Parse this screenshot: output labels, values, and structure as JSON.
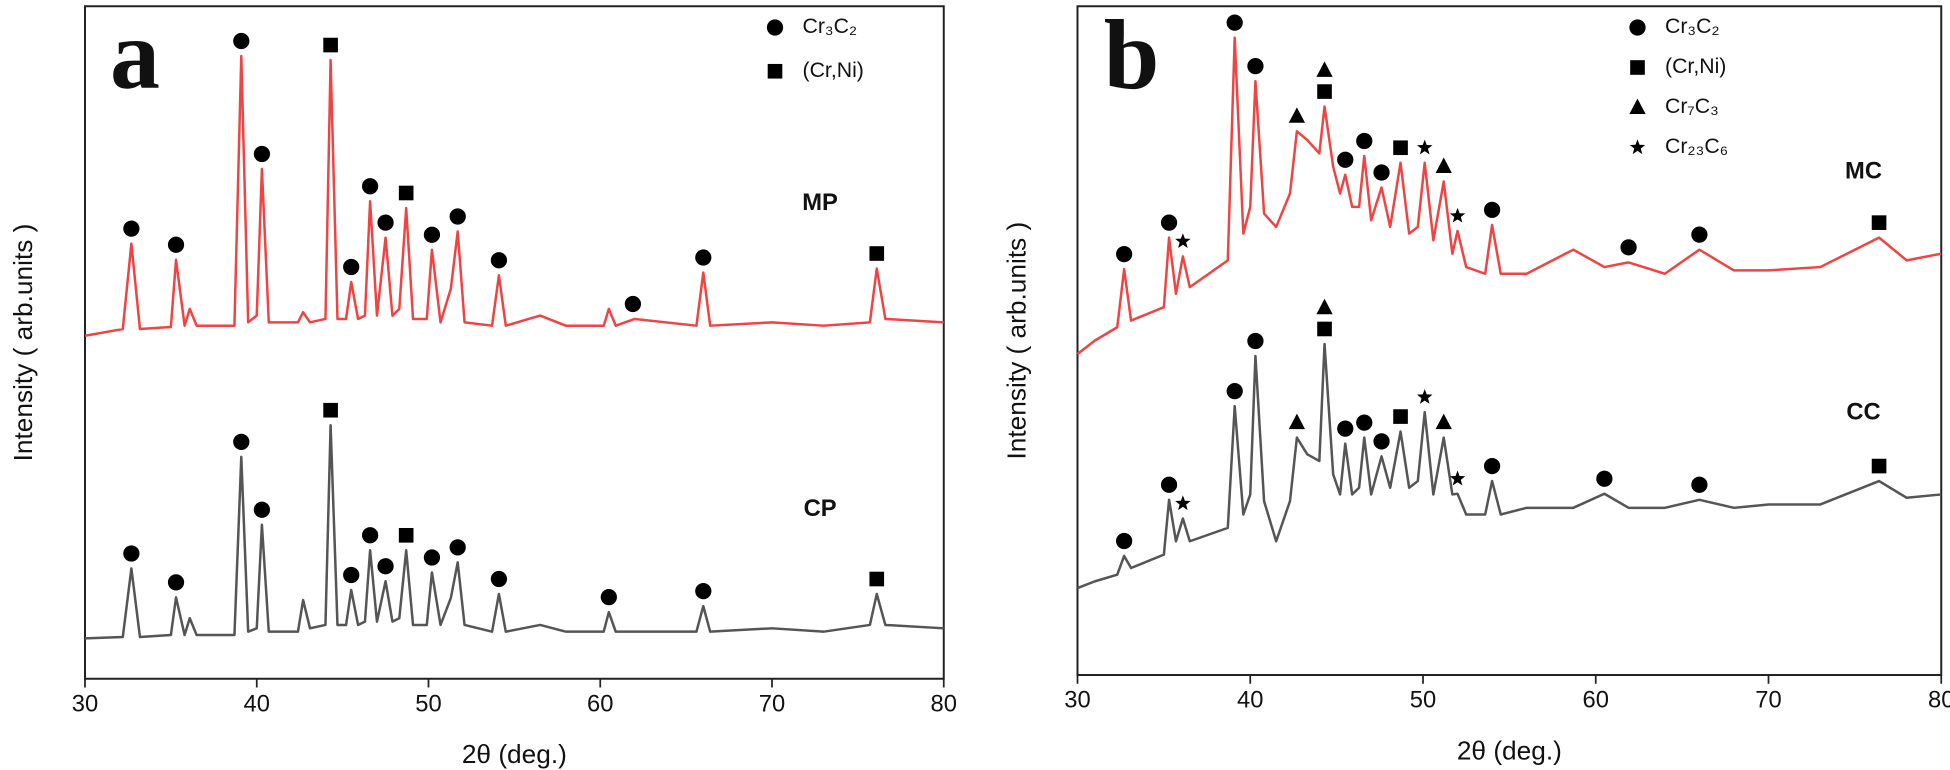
{
  "chart_data": [
    {
      "type": "line",
      "panel_label": "a",
      "x_label": "2θ (deg.)",
      "y_label": "Intensity ( arb.units )",
      "xlim": [
        30,
        80
      ],
      "xticks": [
        30,
        40,
        50,
        60,
        70,
        80
      ],
      "ylim": [
        0,
        100
      ],
      "legend": [
        {
          "name": "Cr₃C₂",
          "symbol": "circle"
        },
        {
          "name": "(Cr,Ni)",
          "symbol": "square"
        }
      ],
      "x": [
        30,
        32.2,
        32.7,
        33.2,
        35,
        35.3,
        35.8,
        36.1,
        36.5,
        38.7,
        39.1,
        39.5,
        40.0,
        40.3,
        40.7,
        42.4,
        42.7,
        43.1,
        44.0,
        44.3,
        44.7,
        45.2,
        45.5,
        45.9,
        46.3,
        46.6,
        47.0,
        47.5,
        47.9,
        48.3,
        48.7,
        49.1,
        49.9,
        50.2,
        50.7,
        51.3,
        51.7,
        52.1,
        53.7,
        54.1,
        54.5,
        56.5,
        58,
        60.2,
        60.5,
        60.9,
        62,
        65.6,
        66,
        66.4,
        70,
        73,
        75.7,
        76.1,
        76.6,
        80
      ],
      "series": [
        {
          "name": "MP",
          "color": "#ef4444",
          "values": [
            51,
            52,
            64.7,
            52,
            52.3,
            62.3,
            52.5,
            55,
            52.5,
            52.5,
            92.6,
            53,
            54,
            75.8,
            53,
            53,
            54.5,
            53,
            53.5,
            92,
            53.5,
            53.5,
            59,
            53.5,
            54,
            71,
            54,
            65.6,
            54,
            55,
            70,
            53.5,
            53.5,
            63.8,
            53,
            58,
            66.5,
            53,
            52.5,
            60,
            52.5,
            54,
            52.5,
            52.5,
            55,
            52.5,
            53.5,
            52.5,
            60.4,
            52.5,
            53,
            52.5,
            53,
            61,
            53.5,
            53
          ],
          "markers": [
            {
              "x": 32.7,
              "phase": 0
            },
            {
              "x": 35.3,
              "phase": 0
            },
            {
              "x": 39.1,
              "phase": 0
            },
            {
              "x": 40.3,
              "phase": 0
            },
            {
              "x": 44.3,
              "phase": 1
            },
            {
              "x": 45.5,
              "phase": 0
            },
            {
              "x": 46.6,
              "phase": 0
            },
            {
              "x": 47.5,
              "phase": 0
            },
            {
              "x": 48.7,
              "phase": 1
            },
            {
              "x": 50.2,
              "phase": 0
            },
            {
              "x": 51.7,
              "phase": 0
            },
            {
              "x": 54.1,
              "phase": 0
            },
            {
              "x": 61.9,
              "phase": 0
            },
            {
              "x": 66,
              "phase": 0
            },
            {
              "x": 76.1,
              "phase": 1
            }
          ]
        },
        {
          "name": "CP",
          "color": "#555555",
          "values": [
            6,
            6.2,
            16.4,
            6.2,
            6.5,
            12.1,
            6.5,
            9,
            6.5,
            6.5,
            33,
            7,
            7.5,
            22.9,
            7,
            7,
            11.7,
            7.5,
            8,
            37.7,
            8,
            8,
            13.2,
            8,
            8.5,
            19.1,
            8.5,
            14.5,
            8.5,
            9,
            19.1,
            8,
            8,
            15.8,
            8,
            12,
            17.3,
            8,
            7,
            12.6,
            7,
            8,
            7,
            7,
            9.9,
            7,
            7,
            7,
            10.8,
            7,
            7.5,
            7,
            8,
            12.6,
            8,
            7.5
          ],
          "markers": [
            {
              "x": 32.7,
              "phase": 0
            },
            {
              "x": 35.3,
              "phase": 0
            },
            {
              "x": 39.1,
              "phase": 0
            },
            {
              "x": 40.3,
              "phase": 0
            },
            {
              "x": 44.3,
              "phase": 1
            },
            {
              "x": 45.5,
              "phase": 0
            },
            {
              "x": 46.6,
              "phase": 0
            },
            {
              "x": 47.5,
              "phase": 0
            },
            {
              "x": 48.7,
              "phase": 1
            },
            {
              "x": 50.2,
              "phase": 0
            },
            {
              "x": 51.7,
              "phase": 0
            },
            {
              "x": 54.1,
              "phase": 0
            },
            {
              "x": 60.5,
              "phase": 0
            },
            {
              "x": 66,
              "phase": 0
            },
            {
              "x": 76.1,
              "phase": 1
            }
          ]
        }
      ]
    },
    {
      "type": "line",
      "panel_label": "b",
      "x_label": "2θ (deg.)",
      "y_label": "Intensity ( arb.units )",
      "xlim": [
        30,
        80
      ],
      "xticks": [
        30,
        40,
        50,
        60,
        70,
        80
      ],
      "ylim": [
        0,
        100
      ],
      "legend": [
        {
          "name": "Cr₃C₂",
          "symbol": "circle"
        },
        {
          "name": "(Cr,Ni)",
          "symbol": "square"
        },
        {
          "name": "Cr₇C₃",
          "symbol": "triangle"
        },
        {
          "name": "Cr₂₃C₆",
          "symbol": "star"
        }
      ],
      "x": [
        30,
        31,
        32.3,
        32.7,
        33.1,
        35,
        35.3,
        35.7,
        36.1,
        36.5,
        38.7,
        39.1,
        39.6,
        40.0,
        40.3,
        40.8,
        41.5,
        42.3,
        42.7,
        43.3,
        44.0,
        44.3,
        44.8,
        45.2,
        45.5,
        45.9,
        46.3,
        46.6,
        47.0,
        47.6,
        48.1,
        48.7,
        49.2,
        49.7,
        50.1,
        50.6,
        51.2,
        51.7,
        52.0,
        52.5,
        53.6,
        54.0,
        54.5,
        56,
        58.7,
        60.5,
        61.9,
        64,
        66,
        68,
        70,
        73,
        76.4,
        78,
        80
      ],
      "series": [
        {
          "name": "MC",
          "color": "#ef4444",
          "values": [
            48,
            50,
            52,
            60.7,
            53,
            55,
            65.4,
            57,
            62.6,
            58,
            62,
            95.3,
            66,
            70,
            88.8,
            69,
            67,
            72,
            81.3,
            80,
            78,
            85,
            76,
            72,
            74.8,
            70,
            70,
            77.6,
            68,
            72.9,
            67,
            76.6,
            66,
            67,
            76.6,
            65,
            73.8,
            63,
            66.4,
            61,
            60,
            67.3,
            60,
            60,
            63.6,
            61,
            61.7,
            60,
            63.6,
            60.5,
            60.5,
            61,
            65.4,
            62,
            63
          ],
          "markers": [
            {
              "x": 32.7,
              "phase": 0
            },
            {
              "x": 35.3,
              "phase": 0
            },
            {
              "x": 36.1,
              "phase": 3
            },
            {
              "x": 39.1,
              "phase": 0
            },
            {
              "x": 40.3,
              "phase": 0
            },
            {
              "x": 42.7,
              "phase": 2
            },
            {
              "x": 44.3,
              "phase": 1
            },
            {
              "x": 44.3,
              "phase": 2
            },
            {
              "x": 45.5,
              "phase": 0
            },
            {
              "x": 46.6,
              "phase": 0
            },
            {
              "x": 47.6,
              "phase": 0
            },
            {
              "x": 48.7,
              "phase": 1
            },
            {
              "x": 50.1,
              "phase": 3
            },
            {
              "x": 51.2,
              "phase": 2
            },
            {
              "x": 52,
              "phase": 3
            },
            {
              "x": 54,
              "phase": 0
            },
            {
              "x": 61.9,
              "phase": 0
            },
            {
              "x": 66,
              "phase": 0
            },
            {
              "x": 76.4,
              "phase": 1
            }
          ]
        },
        {
          "name": "CC",
          "color": "#555555",
          "values": [
            13,
            14,
            15,
            17.8,
            16,
            18,
            26.2,
            20,
            23.4,
            20,
            22,
            40.2,
            24,
            27,
            47.7,
            26,
            20,
            26,
            35.5,
            33,
            32,
            49.5,
            30,
            27,
            34.6,
            27,
            28,
            35.5,
            27,
            32.7,
            28,
            36.4,
            28,
            29,
            39.3,
            27,
            35.5,
            27,
            27.1,
            24,
            24,
            29,
            24,
            25,
            25,
            27.1,
            25,
            25,
            26.2,
            25,
            25.5,
            25.5,
            29,
            26.5,
            27
          ],
          "markers": [
            {
              "x": 32.7,
              "phase": 0
            },
            {
              "x": 35.3,
              "phase": 0
            },
            {
              "x": 36.1,
              "phase": 3
            },
            {
              "x": 39.1,
              "phase": 0
            },
            {
              "x": 40.3,
              "phase": 0
            },
            {
              "x": 42.7,
              "phase": 2
            },
            {
              "x": 44.3,
              "phase": 1
            },
            {
              "x": 44.3,
              "phase": 2
            },
            {
              "x": 45.5,
              "phase": 0
            },
            {
              "x": 46.6,
              "phase": 0
            },
            {
              "x": 47.6,
              "phase": 0
            },
            {
              "x": 48.7,
              "phase": 1
            },
            {
              "x": 50.1,
              "phase": 3
            },
            {
              "x": 51.2,
              "phase": 2
            },
            {
              "x": 52,
              "phase": 3
            },
            {
              "x": 54,
              "phase": 0
            },
            {
              "x": 60.5,
              "phase": 0
            },
            {
              "x": 66,
              "phase": 0
            },
            {
              "x": 76.4,
              "phase": 1
            }
          ]
        }
      ]
    }
  ]
}
